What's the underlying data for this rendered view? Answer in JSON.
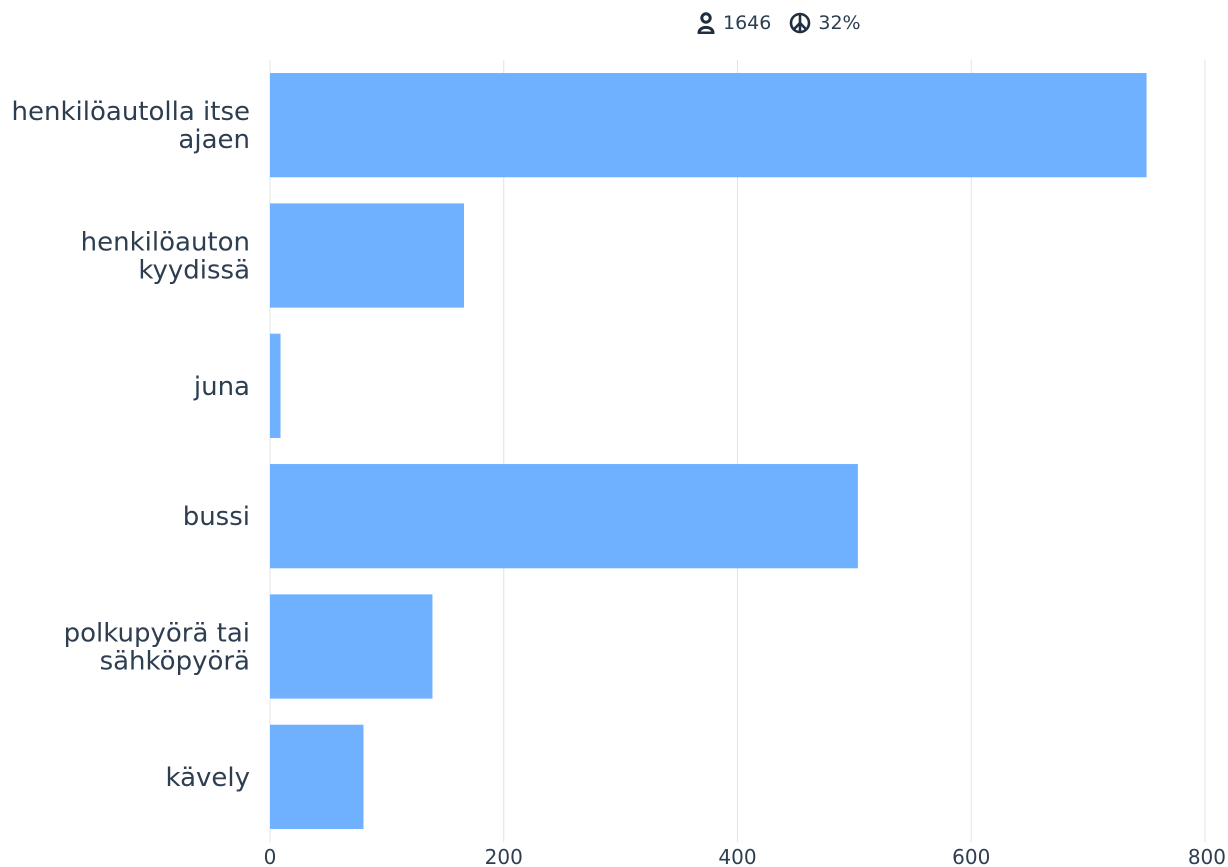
{
  "stats": {
    "respondents": "1646",
    "percentage": "32%"
  },
  "colors": {
    "bar": "#70b1ff",
    "grid": "#e3e3e3",
    "text": "#2d3e50"
  },
  "chart_data": {
    "type": "bar",
    "orientation": "horizontal",
    "categories": [
      [
        "henkilöautolla itse",
        "ajaen"
      ],
      [
        "henkilöauton",
        "kyydissä"
      ],
      [
        "juna"
      ],
      [
        "bussi"
      ],
      [
        "polkupyörä tai",
        "sähköpyörä"
      ],
      [
        "kävely"
      ]
    ],
    "values": [
      750,
      166,
      9,
      503,
      139,
      80
    ],
    "xlim": [
      0,
      800
    ],
    "xticks": [
      "0",
      "200",
      "400",
      "600",
      "800"
    ],
    "grid": true
  }
}
